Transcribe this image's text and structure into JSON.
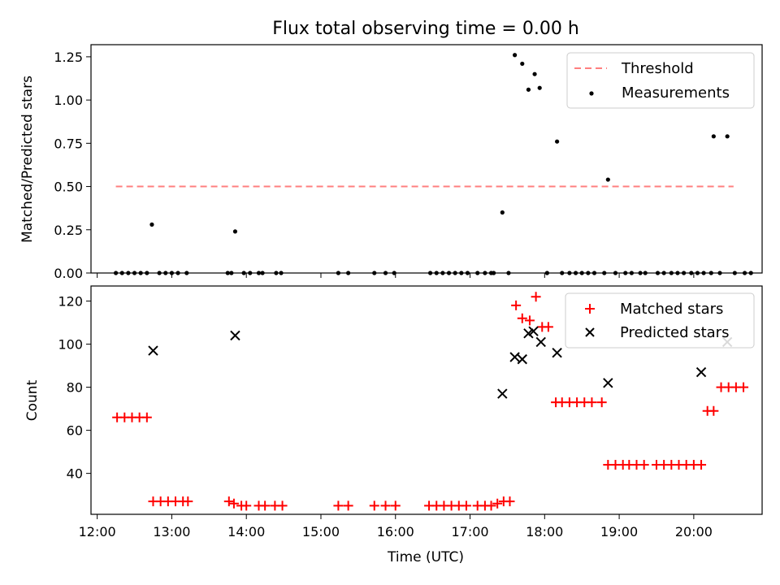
{
  "figure": {
    "title": "Flux total observing time = 0.00 h"
  },
  "chart_data": [
    {
      "type": "scatter",
      "ylabel": "Matched/Predicted stars",
      "ylim": [
        0,
        1.32
      ],
      "yticks": [
        0.0,
        0.25,
        0.5,
        0.75,
        1.0,
        1.25
      ],
      "ytick_labels": [
        "0.00",
        "0.25",
        "0.50",
        "0.75",
        "1.00",
        "1.25"
      ],
      "legend_position": "top-right",
      "legend": [
        {
          "label": "Threshold",
          "kind": "dashed-line",
          "color": "#ff7f7f"
        },
        {
          "label": "Measurements",
          "kind": "dot",
          "color": "#000000"
        }
      ],
      "threshold": {
        "value": 0.5,
        "x_start": "12:15",
        "x_end": "20:32"
      },
      "series": [
        {
          "name": "Measurements",
          "color": "#000000",
          "points": [
            [
              "12:15",
              0
            ],
            [
              "12:20",
              0
            ],
            [
              "12:25",
              0
            ],
            [
              "12:30",
              0
            ],
            [
              "12:35",
              0
            ],
            [
              "12:40",
              0
            ],
            [
              "12:44",
              0.28
            ],
            [
              "12:50",
              0
            ],
            [
              "12:55",
              0
            ],
            [
              "13:00",
              0
            ],
            [
              "13:05",
              0
            ],
            [
              "13:12",
              0
            ],
            [
              "13:45",
              0
            ],
            [
              "13:48",
              0
            ],
            [
              "13:51",
              0.24
            ],
            [
              "13:58",
              0
            ],
            [
              "14:03",
              0
            ],
            [
              "14:10",
              0
            ],
            [
              "14:13",
              0
            ],
            [
              "14:24",
              0
            ],
            [
              "14:28",
              0
            ],
            [
              "15:14",
              0
            ],
            [
              "15:22",
              0
            ],
            [
              "15:43",
              0
            ],
            [
              "15:52",
              0
            ],
            [
              "15:59",
              0
            ],
            [
              "16:28",
              0
            ],
            [
              "16:33",
              0
            ],
            [
              "16:38",
              0
            ],
            [
              "16:43",
              0
            ],
            [
              "16:48",
              0
            ],
            [
              "16:53",
              0
            ],
            [
              "16:58",
              0
            ],
            [
              "17:06",
              0
            ],
            [
              "17:12",
              0
            ],
            [
              "17:17",
              0
            ],
            [
              "17:19",
              0
            ],
            [
              "17:26",
              0.35
            ],
            [
              "17:31",
              0
            ],
            [
              "17:36",
              1.26
            ],
            [
              "17:42",
              1.21
            ],
            [
              "17:47",
              1.06
            ],
            [
              "17:52",
              1.15
            ],
            [
              "17:56",
              1.07
            ],
            [
              "18:02",
              0
            ],
            [
              "18:10",
              0.76
            ],
            [
              "18:14",
              0
            ],
            [
              "18:20",
              0
            ],
            [
              "18:25",
              0
            ],
            [
              "18:30",
              0
            ],
            [
              "18:35",
              0
            ],
            [
              "18:40",
              0
            ],
            [
              "18:48",
              0
            ],
            [
              "18:51",
              0.54
            ],
            [
              "18:57",
              0
            ],
            [
              "19:05",
              0
            ],
            [
              "19:10",
              0
            ],
            [
              "19:17",
              0
            ],
            [
              "19:21",
              0
            ],
            [
              "19:31",
              0
            ],
            [
              "19:36",
              0
            ],
            [
              "19:42",
              0
            ],
            [
              "19:47",
              0
            ],
            [
              "19:52",
              0
            ],
            [
              "19:58",
              0
            ],
            [
              "20:03",
              0
            ],
            [
              "20:08",
              0
            ],
            [
              "20:14",
              0
            ],
            [
              "20:16",
              0.79
            ],
            [
              "20:21",
              0
            ],
            [
              "20:27",
              0.79
            ],
            [
              "20:33",
              0
            ],
            [
              "20:41",
              0
            ],
            [
              "20:46",
              0
            ]
          ]
        }
      ]
    },
    {
      "type": "scatter",
      "ylabel": "Count",
      "xlabel": "Time (UTC)",
      "ylim": [
        21,
        127
      ],
      "yticks": [
        40,
        60,
        80,
        100,
        120
      ],
      "ytick_labels": [
        "40",
        "60",
        "80",
        "100",
        "120"
      ],
      "xlim": [
        "11:55",
        "20:55"
      ],
      "xticks": [
        "12:00",
        "13:00",
        "14:00",
        "15:00",
        "16:00",
        "17:00",
        "18:00",
        "19:00",
        "20:00"
      ],
      "xtick_labels": [
        "12:00",
        "13:00",
        "14:00",
        "15:00",
        "16:00",
        "17:00",
        "18:00",
        "19:00",
        "20:00"
      ],
      "legend_position": "top-right",
      "legend": [
        {
          "label": "Matched stars",
          "kind": "plus",
          "color": "#ff0000"
        },
        {
          "label": "Predicted stars",
          "kind": "cross",
          "color": "#000000"
        }
      ],
      "series": [
        {
          "name": "Matched stars",
          "marker": "plus",
          "color": "#ff0000",
          "points": [
            [
              "12:16",
              66
            ],
            [
              "12:22",
              66
            ],
            [
              "12:28",
              66
            ],
            [
              "12:34",
              66
            ],
            [
              "12:40",
              66
            ],
            [
              "12:45",
              27
            ],
            [
              "12:51",
              27
            ],
            [
              "12:57",
              27
            ],
            [
              "13:03",
              27
            ],
            [
              "13:09",
              27
            ],
            [
              "13:13",
              27
            ],
            [
              "13:46",
              27
            ],
            [
              "13:50",
              26
            ],
            [
              "13:56",
              25
            ],
            [
              "14:00",
              25
            ],
            [
              "14:10",
              25
            ],
            [
              "14:15",
              25
            ],
            [
              "14:23",
              25
            ],
            [
              "14:29",
              25
            ],
            [
              "15:14",
              25
            ],
            [
              "15:22",
              25
            ],
            [
              "15:43",
              25
            ],
            [
              "15:52",
              25
            ],
            [
              "16:00",
              25
            ],
            [
              "16:27",
              25
            ],
            [
              "16:33",
              25
            ],
            [
              "16:39",
              25
            ],
            [
              "16:45",
              25
            ],
            [
              "16:51",
              25
            ],
            [
              "16:57",
              25
            ],
            [
              "17:06",
              25
            ],
            [
              "17:12",
              25
            ],
            [
              "17:17",
              25
            ],
            [
              "17:22",
              26
            ],
            [
              "17:27",
              27
            ],
            [
              "17:32",
              27
            ],
            [
              "17:37",
              118
            ],
            [
              "17:42",
              112
            ],
            [
              "17:48",
              111
            ],
            [
              "17:53",
              122
            ],
            [
              "17:58",
              108
            ],
            [
              "18:03",
              108
            ],
            [
              "18:09",
              73
            ],
            [
              "18:14",
              73
            ],
            [
              "18:20",
              73
            ],
            [
              "18:26",
              73
            ],
            [
              "18:32",
              73
            ],
            [
              "18:38",
              73
            ],
            [
              "18:46",
              73
            ],
            [
              "18:51",
              44
            ],
            [
              "18:57",
              44
            ],
            [
              "19:03",
              44
            ],
            [
              "19:08",
              44
            ],
            [
              "19:14",
              44
            ],
            [
              "19:20",
              44
            ],
            [
              "19:30",
              44
            ],
            [
              "19:36",
              44
            ],
            [
              "19:42",
              44
            ],
            [
              "19:48",
              44
            ],
            [
              "19:54",
              44
            ],
            [
              "20:00",
              44
            ],
            [
              "20:06",
              44
            ],
            [
              "20:11",
              69
            ],
            [
              "20:16",
              69
            ],
            [
              "20:22",
              80
            ],
            [
              "20:28",
              80
            ],
            [
              "20:34",
              80
            ],
            [
              "20:40",
              80
            ]
          ]
        },
        {
          "name": "Predicted stars",
          "marker": "cross",
          "color": "#000000",
          "points": [
            [
              "12:45",
              97
            ],
            [
              "13:51",
              104
            ],
            [
              "17:26",
              77
            ],
            [
              "17:36",
              94
            ],
            [
              "17:42",
              93
            ],
            [
              "17:47",
              105
            ],
            [
              "17:51",
              106
            ],
            [
              "17:57",
              101
            ],
            [
              "18:10",
              96
            ],
            [
              "18:51",
              82
            ],
            [
              "20:06",
              87
            ],
            [
              "20:27",
              101
            ]
          ]
        }
      ]
    }
  ]
}
